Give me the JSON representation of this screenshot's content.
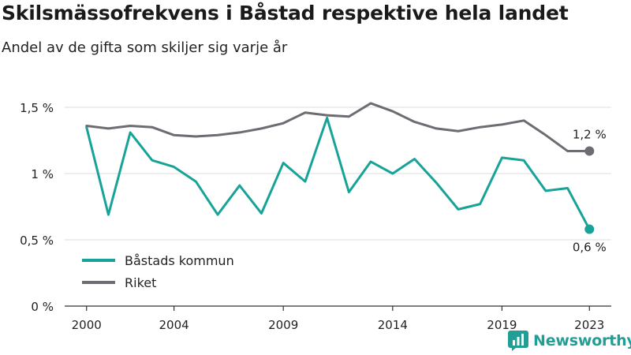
{
  "header": {
    "title": "Skilsmässofrekvens i Båstad respektive hela landet",
    "subtitle": "Andel av de gifta som skiljer sig varje år"
  },
  "brand": {
    "name": "Newsworthy",
    "icon": "newsworthy-logo-icon",
    "color": "#239e96"
  },
  "colors": {
    "bastad": "#17a398",
    "riket": "#6d6c72",
    "grid": "#dddddd",
    "axis": "#333333"
  },
  "chart_data": {
    "type": "line",
    "x": [
      2000,
      2001,
      2002,
      2003,
      2004,
      2005,
      2006,
      2007,
      2008,
      2009,
      2010,
      2011,
      2012,
      2013,
      2014,
      2015,
      2016,
      2017,
      2018,
      2019,
      2020,
      2021,
      2022,
      2023
    ],
    "xticks": [
      2000,
      2004,
      2009,
      2014,
      2019,
      2023
    ],
    "xtick_labels": [
      "2000",
      "2004",
      "2009",
      "2014",
      "2019",
      "2023"
    ],
    "xlim": [
      1999,
      2024
    ],
    "ylim": [
      0,
      1.5
    ],
    "yticks": [
      0,
      0.5,
      1,
      1.5
    ],
    "ytick_labels": [
      "0 %",
      "0,5 %",
      "1 %",
      "1,5 %"
    ],
    "grid": true,
    "legend_position": "bottom-left",
    "series": [
      {
        "name": "Båstads kommun",
        "color": "#17a398",
        "values": [
          1.35,
          0.69,
          1.31,
          1.1,
          1.05,
          0.94,
          0.69,
          0.91,
          0.7,
          1.08,
          0.94,
          1.42,
          0.86,
          1.09,
          1.0,
          1.11,
          0.93,
          0.73,
          0.77,
          1.12,
          1.1,
          0.87,
          0.89,
          0.58
        ],
        "end_label": "0,6 %"
      },
      {
        "name": "Riket",
        "color": "#6d6c72",
        "values": [
          1.36,
          1.34,
          1.36,
          1.35,
          1.29,
          1.28,
          1.29,
          1.31,
          1.34,
          1.38,
          1.46,
          1.44,
          1.43,
          1.53,
          1.47,
          1.39,
          1.34,
          1.32,
          1.35,
          1.37,
          1.4,
          1.29,
          1.17,
          1.17
        ],
        "end_label": "1,2 %"
      }
    ]
  }
}
